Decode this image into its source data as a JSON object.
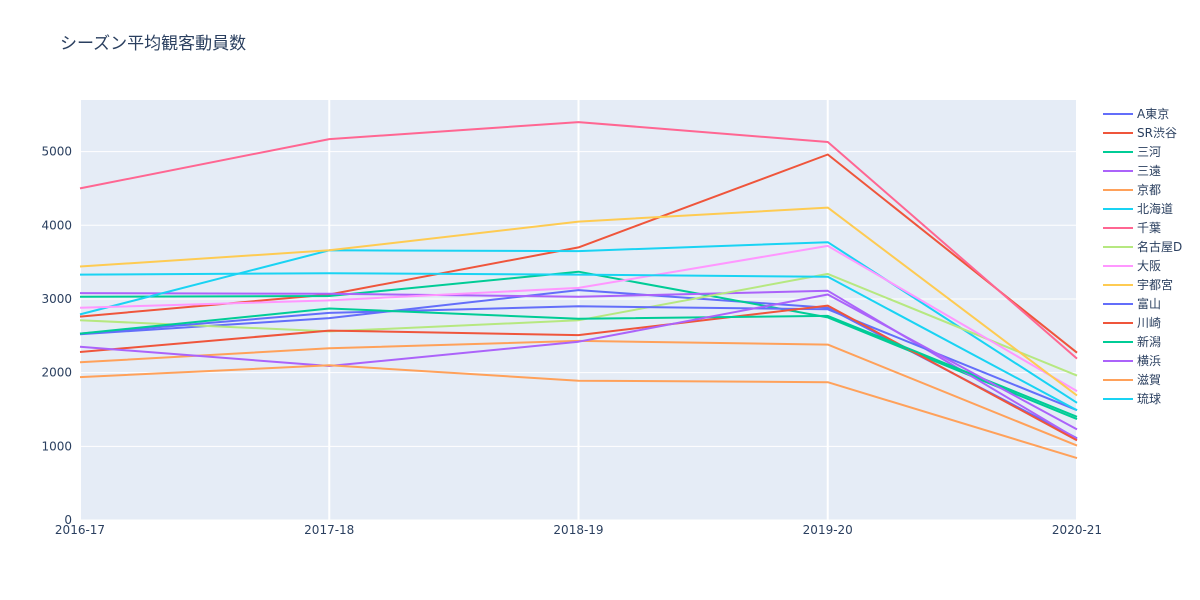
{
  "chart_data": {
    "type": "line",
    "title": "シーズン平均観客動員数",
    "categories": [
      "2016-17",
      "2017-18",
      "2018-19",
      "2019-20",
      "2020-21"
    ],
    "xlabel": "",
    "ylabel": "",
    "ylim": [
      0,
      5700
    ],
    "yticks": [
      0,
      1000,
      2000,
      3000,
      4000,
      5000
    ],
    "grid": true,
    "legend_position": "right",
    "colors": {
      "plot_bg": "#e5ecf6",
      "grid": "#ffffff",
      "text": "#2a3f5f"
    },
    "series": [
      {
        "name": "A東京",
        "color": "#636efa",
        "values": [
          2520,
          2740,
          3120,
          2880,
          1110
        ]
      },
      {
        "name": "SR渋谷",
        "color": "#EF553B",
        "values": [
          2760,
          3060,
          3700,
          4960,
          2270
        ]
      },
      {
        "name": "三河",
        "color": "#00cc96",
        "values": [
          3030,
          3040,
          3370,
          2750,
          1370
        ]
      },
      {
        "name": "三遠",
        "color": "#ab63fa",
        "values": [
          3080,
          3070,
          3030,
          3110,
          1100
        ]
      },
      {
        "name": "京都",
        "color": "#FFA15A",
        "values": [
          2140,
          2330,
          2430,
          2380,
          1010
        ]
      },
      {
        "name": "北海道",
        "color": "#19d3f3",
        "values": [
          2790,
          3660,
          3650,
          3770,
          1590
        ]
      },
      {
        "name": "千葉",
        "color": "#FF6692",
        "values": [
          4500,
          5170,
          5400,
          5130,
          2190
        ]
      },
      {
        "name": "名古屋D",
        "color": "#B6E880",
        "values": [
          2710,
          2560,
          2710,
          3340,
          1960
        ]
      },
      {
        "name": "大阪",
        "color": "#FF97FF",
        "values": [
          2880,
          2980,
          3150,
          3720,
          1750
        ]
      },
      {
        "name": "宇都宮",
        "color": "#FECB52",
        "values": [
          3440,
          3660,
          4050,
          4240,
          1690
        ]
      },
      {
        "name": "富山",
        "color": "#636efa",
        "values": [
          2530,
          2810,
          2900,
          2860,
          1490
        ]
      },
      {
        "name": "川崎",
        "color": "#EF553B",
        "values": [
          2280,
          2570,
          2510,
          2910,
          1080
        ]
      },
      {
        "name": "新潟",
        "color": "#00cc96",
        "values": [
          2530,
          2870,
          2730,
          2770,
          1400
        ]
      },
      {
        "name": "横浜",
        "color": "#ab63fa",
        "values": [
          2350,
          2090,
          2420,
          3060,
          1230
        ]
      },
      {
        "name": "滋賀",
        "color": "#FFA15A",
        "values": [
          1940,
          2100,
          1890,
          1870,
          840
        ]
      },
      {
        "name": "琉球",
        "color": "#19d3f3",
        "values": [
          3330,
          3350,
          3330,
          3300,
          1490
        ]
      }
    ]
  }
}
